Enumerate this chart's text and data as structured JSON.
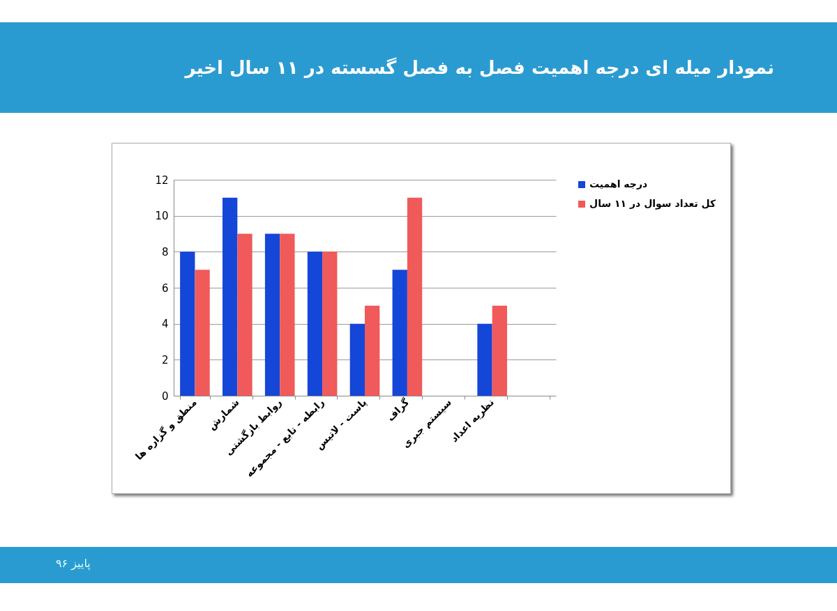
{
  "chart_data": {
    "type": "bar",
    "title": "نمودار میله ای درجه اهمیت فصل به فصل گسسته در ۱۱ سال اخیر",
    "categories": [
      "منطق و گزاره ها",
      "شمارش",
      "روابط بازگشتی",
      "رابطه - تابع - مجموعه",
      "پاست - لاتیس",
      "گراف",
      "سیستم جبری",
      "نظریه اعداد",
      null
    ],
    "series": [
      {
        "name": "درجه اهمیت",
        "color": "#1446d8",
        "values": [
          8,
          11,
          9,
          8,
          4,
          7,
          0,
          4,
          null
        ]
      },
      {
        "name": "کل تعداد سوال در ۱۱ سال",
        "color": "#f05a5a",
        "values": [
          7,
          9,
          9,
          8,
          5,
          11,
          0,
          5,
          null
        ]
      }
    ],
    "ylim": [
      0,
      12
    ],
    "yticks": [
      0,
      2,
      4,
      6,
      8,
      10,
      12
    ],
    "grid": "y",
    "legend": "right",
    "annotations": [
      "پاییز ۹۶"
    ]
  }
}
